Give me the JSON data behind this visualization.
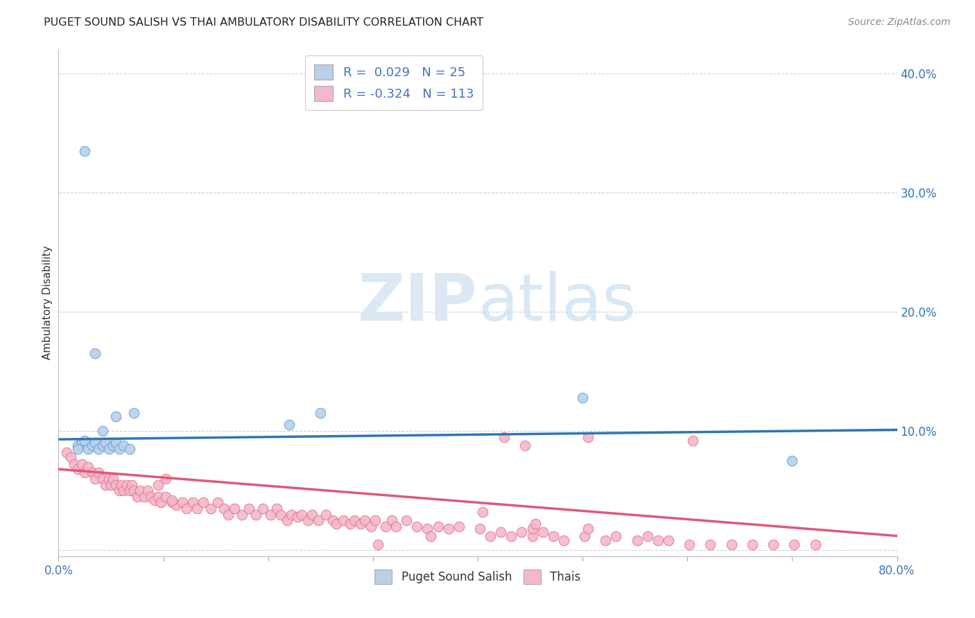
{
  "title": "PUGET SOUND SALISH VS THAI AMBULATORY DISABILITY CORRELATION CHART",
  "source": "Source: ZipAtlas.com",
  "ylabel": "Ambulatory Disability",
  "xlim": [
    0.0,
    0.8
  ],
  "ylim": [
    -0.005,
    0.42
  ],
  "yticks": [
    0.0,
    0.1,
    0.2,
    0.3,
    0.4
  ],
  "ytick_labels": [
    "",
    "10.0%",
    "20.0%",
    "30.0%",
    "40.0%"
  ],
  "xtick_positions": [
    0.0,
    0.1,
    0.2,
    0.3,
    0.4,
    0.5,
    0.6,
    0.7,
    0.8
  ],
  "blue_R": 0.029,
  "blue_N": 25,
  "pink_R": -0.324,
  "pink_N": 113,
  "blue_color": "#b8d0e8",
  "blue_edge_color": "#5b9bd5",
  "blue_line_color": "#2e75b6",
  "pink_color": "#f4b8c8",
  "pink_edge_color": "#e07090",
  "pink_line_color": "#e05878",
  "legend_text_color": "#4472c4",
  "watermark_color": "#dce8f4",
  "blue_line_start_y": 0.093,
  "blue_line_end_y": 0.101,
  "pink_line_start_y": 0.068,
  "pink_line_end_y": 0.012,
  "blue_scatter_x": [
    0.018,
    0.022,
    0.025,
    0.028,
    0.032,
    0.035,
    0.038,
    0.042,
    0.045,
    0.048,
    0.052,
    0.055,
    0.058,
    0.062,
    0.025,
    0.035,
    0.042,
    0.055,
    0.22,
    0.25,
    0.5,
    0.068,
    0.072,
    0.7,
    0.018
  ],
  "blue_scatter_y": [
    0.088,
    0.09,
    0.092,
    0.085,
    0.088,
    0.09,
    0.085,
    0.088,
    0.09,
    0.085,
    0.088,
    0.09,
    0.085,
    0.088,
    0.335,
    0.165,
    0.1,
    0.112,
    0.105,
    0.115,
    0.128,
    0.085,
    0.115,
    0.075,
    0.085
  ],
  "pink_scatter_x": [
    0.008,
    0.012,
    0.015,
    0.018,
    0.022,
    0.025,
    0.028,
    0.032,
    0.035,
    0.038,
    0.042,
    0.045,
    0.048,
    0.05,
    0.052,
    0.055,
    0.058,
    0.06,
    0.062,
    0.065,
    0.068,
    0.07,
    0.072,
    0.075,
    0.078,
    0.082,
    0.085,
    0.088,
    0.092,
    0.095,
    0.098,
    0.102,
    0.108,
    0.112,
    0.118,
    0.122,
    0.128,
    0.132,
    0.138,
    0.145,
    0.152,
    0.158,
    0.162,
    0.168,
    0.175,
    0.182,
    0.188,
    0.195,
    0.202,
    0.208,
    0.212,
    0.218,
    0.222,
    0.228,
    0.232,
    0.238,
    0.242,
    0.248,
    0.255,
    0.262,
    0.265,
    0.272,
    0.278,
    0.282,
    0.288,
    0.292,
    0.298,
    0.302,
    0.312,
    0.318,
    0.322,
    0.332,
    0.342,
    0.352,
    0.362,
    0.372,
    0.382,
    0.402,
    0.412,
    0.422,
    0.432,
    0.442,
    0.452,
    0.462,
    0.472,
    0.482,
    0.502,
    0.522,
    0.532,
    0.552,
    0.562,
    0.572,
    0.582,
    0.602,
    0.622,
    0.642,
    0.662,
    0.682,
    0.702,
    0.722,
    0.425,
    0.445,
    0.505,
    0.405,
    0.305,
    0.355,
    0.095,
    0.102,
    0.108,
    0.452,
    0.505,
    0.455,
    0.605
  ],
  "pink_scatter_y": [
    0.082,
    0.078,
    0.072,
    0.068,
    0.072,
    0.065,
    0.07,
    0.065,
    0.06,
    0.065,
    0.06,
    0.055,
    0.06,
    0.055,
    0.06,
    0.055,
    0.05,
    0.055,
    0.05,
    0.055,
    0.05,
    0.055,
    0.05,
    0.045,
    0.05,
    0.045,
    0.05,
    0.045,
    0.042,
    0.045,
    0.04,
    0.045,
    0.04,
    0.038,
    0.04,
    0.035,
    0.04,
    0.035,
    0.04,
    0.035,
    0.04,
    0.035,
    0.03,
    0.035,
    0.03,
    0.035,
    0.03,
    0.035,
    0.03,
    0.035,
    0.03,
    0.025,
    0.03,
    0.028,
    0.03,
    0.025,
    0.03,
    0.025,
    0.03,
    0.025,
    0.022,
    0.025,
    0.022,
    0.025,
    0.022,
    0.025,
    0.02,
    0.025,
    0.02,
    0.025,
    0.02,
    0.025,
    0.02,
    0.018,
    0.02,
    0.018,
    0.02,
    0.018,
    0.012,
    0.015,
    0.012,
    0.015,
    0.012,
    0.015,
    0.012,
    0.008,
    0.012,
    0.008,
    0.012,
    0.008,
    0.012,
    0.008,
    0.008,
    0.005,
    0.005,
    0.005,
    0.005,
    0.005,
    0.005,
    0.005,
    0.095,
    0.088,
    0.095,
    0.032,
    0.005,
    0.012,
    0.055,
    0.06,
    0.042,
    0.018,
    0.018,
    0.022,
    0.092
  ]
}
